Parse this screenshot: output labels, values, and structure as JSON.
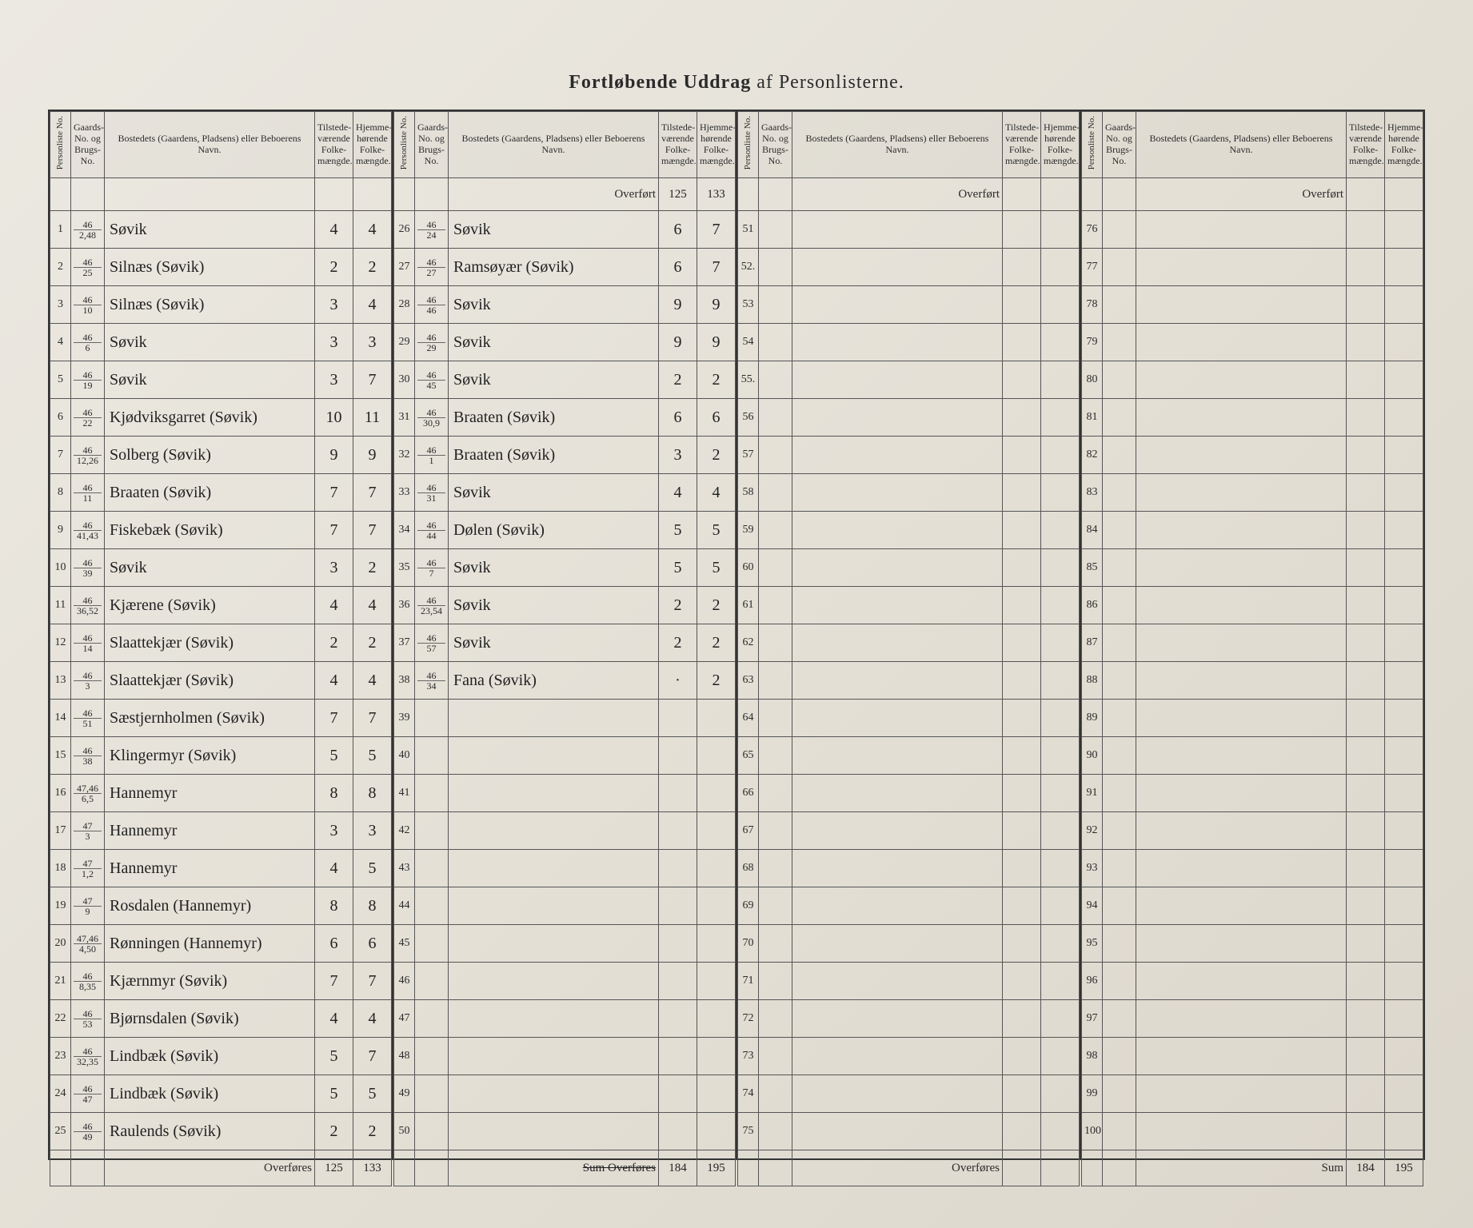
{
  "title_strong": "Fortløbende Uddrag",
  "title_light": "af Personlisterne.",
  "headers": {
    "personliste": "Personliste No.",
    "gaards": "Gaards-\nNo.\nog\nBrugs-\nNo.",
    "bosted": "Bostedets (Gaardens, Pladsens) eller Beboerens Navn.",
    "tilstede": "Tilstede-\nværende\nFolke-\nmængde.",
    "hjemme": "Hjemme-\nhørende\nFolke-\nmængde."
  },
  "labels": {
    "overfort": "Overført",
    "overfores": "Overføres",
    "sum": "Sum",
    "sum_overfores": "Sum Overføres"
  },
  "block1": {
    "rows": [
      {
        "no": "1",
        "g1": "46",
        "g2": "2,48",
        "name": "Søvik",
        "t": "4",
        "h": "4"
      },
      {
        "no": "2",
        "g1": "46",
        "g2": "25",
        "name": "Silnæs   (Søvik)",
        "t": "2",
        "h": "2"
      },
      {
        "no": "3",
        "g1": "46",
        "g2": "10",
        "name": "Silnæs   (Søvik)",
        "t": "3",
        "h": "4"
      },
      {
        "no": "4",
        "g1": "46",
        "g2": "6",
        "name": "Søvik",
        "t": "3",
        "h": "3"
      },
      {
        "no": "5",
        "g1": "46",
        "g2": "19",
        "name": "Søvik",
        "t": "3",
        "h": "7"
      },
      {
        "no": "6",
        "g1": "46",
        "g2": "22",
        "name": "Kjødviksgarret (Søvik)",
        "t": "10",
        "h": "11"
      },
      {
        "no": "7",
        "g1": "46",
        "g2": "12,26",
        "name": "Solberg   (Søvik)",
        "t": "9",
        "h": "9"
      },
      {
        "no": "8",
        "g1": "46",
        "g2": "11",
        "name": "Braaten   (Søvik)",
        "t": "7",
        "h": "7"
      },
      {
        "no": "9",
        "g1": "46",
        "g2": "41,43",
        "name": "Fiskebæk   (Søvik)",
        "t": "7",
        "h": "7"
      },
      {
        "no": "10",
        "g1": "46",
        "g2": "39",
        "name": "Søvik",
        "t": "3",
        "h": "2"
      },
      {
        "no": "11",
        "g1": "46",
        "g2": "36,52",
        "name": "Kjærene   (Søvik)",
        "t": "4",
        "h": "4"
      },
      {
        "no": "12",
        "g1": "46",
        "g2": "14",
        "name": "Slaattekjær  (Søvik)",
        "t": "2",
        "h": "2"
      },
      {
        "no": "13",
        "g1": "46",
        "g2": "3",
        "name": "Slaattekjær  (Søvik)",
        "t": "4",
        "h": "4"
      },
      {
        "no": "14",
        "g1": "46",
        "g2": "51",
        "name": "Sæstjernholmen (Søvik)",
        "t": "7",
        "h": "7"
      },
      {
        "no": "15",
        "g1": "46",
        "g2": "38",
        "name": "Klingermyr  (Søvik)",
        "t": "5",
        "h": "5"
      },
      {
        "no": "16",
        "g1": "47,46",
        "g2": "6,5",
        "name": "Hannemyr",
        "t": "8",
        "h": "8"
      },
      {
        "no": "17",
        "g1": "47",
        "g2": "3",
        "name": "Hannemyr",
        "t": "3",
        "h": "3"
      },
      {
        "no": "18",
        "g1": "47",
        "g2": "1,2",
        "name": "Hannemyr",
        "t": "4",
        "h": "5"
      },
      {
        "no": "19",
        "g1": "47",
        "g2": "9",
        "name": "Rosdalen  (Hannemyr)",
        "t": "8",
        "h": "8"
      },
      {
        "no": "20",
        "g1": "47,46",
        "g2": "4,50",
        "name": "Rønningen (Hannemyr)",
        "t": "6",
        "h": "6"
      },
      {
        "no": "21",
        "g1": "46",
        "g2": "8,35",
        "name": "Kjærnmyr  (Søvik)",
        "t": "7",
        "h": "7"
      },
      {
        "no": "22",
        "g1": "46",
        "g2": "53",
        "name": "Bjørnsdalen  (Søvik)",
        "t": "4",
        "h": "4"
      },
      {
        "no": "23",
        "g1": "46",
        "g2": "32,35",
        "name": "Lindbæk   (Søvik)",
        "t": "5",
        "h": "7"
      },
      {
        "no": "24",
        "g1": "46",
        "g2": "47",
        "name": "Lindbæk   (Søvik)",
        "t": "5",
        "h": "5"
      },
      {
        "no": "25",
        "g1": "46",
        "g2": "49",
        "name": "Raulends   (Søvik)",
        "t": "2",
        "h": "2"
      }
    ],
    "overfores_t": "125",
    "overfores_h": "133"
  },
  "block2": {
    "overfort_t": "125",
    "overfort_h": "133",
    "rows": [
      {
        "no": "26",
        "g1": "46",
        "g2": "24",
        "name": "Søvik",
        "t": "6",
        "h": "7"
      },
      {
        "no": "27",
        "g1": "46",
        "g2": "27",
        "name": "Ramsøyær  (Søvik)",
        "t": "6",
        "h": "7"
      },
      {
        "no": "28",
        "g1": "46",
        "g2": "46",
        "name": "Søvik",
        "t": "9",
        "h": "9"
      },
      {
        "no": "29",
        "g1": "46",
        "g2": "29",
        "name": "Søvik",
        "t": "9",
        "h": "9"
      },
      {
        "no": "30",
        "g1": "46",
        "g2": "45",
        "name": "Søvik",
        "t": "2",
        "h": "2"
      },
      {
        "no": "31",
        "g1": "46",
        "g2": "30,9",
        "name": "Braaten   (Søvik)",
        "t": "6",
        "h": "6"
      },
      {
        "no": "32",
        "g1": "46",
        "g2": "1",
        "name": "Braaten   (Søvik)",
        "t": "3",
        "h": "2"
      },
      {
        "no": "33",
        "g1": "46",
        "g2": "31",
        "name": "Søvik",
        "t": "4",
        "h": "4"
      },
      {
        "no": "34",
        "g1": "46",
        "g2": "44",
        "name": "Dølen   (Søvik)",
        "t": "5",
        "h": "5"
      },
      {
        "no": "35",
        "g1": "46",
        "g2": "7",
        "name": "Søvik",
        "t": "5",
        "h": "5"
      },
      {
        "no": "36",
        "g1": "46",
        "g2": "23,54",
        "name": "Søvik",
        "t": "2",
        "h": "2"
      },
      {
        "no": "37",
        "g1": "46",
        "g2": "57",
        "name": "Søvik",
        "t": "2",
        "h": "2"
      },
      {
        "no": "38",
        "g1": "46",
        "g2": "34",
        "name": "Fana   (Søvik)",
        "t": "·",
        "h": "2"
      },
      {
        "no": "39",
        "g1": "",
        "g2": "",
        "name": "",
        "t": "",
        "h": ""
      },
      {
        "no": "40",
        "g1": "",
        "g2": "",
        "name": "",
        "t": "",
        "h": ""
      },
      {
        "no": "41",
        "g1": "",
        "g2": "",
        "name": "",
        "t": "",
        "h": ""
      },
      {
        "no": "42",
        "g1": "",
        "g2": "",
        "name": "",
        "t": "",
        "h": ""
      },
      {
        "no": "43",
        "g1": "",
        "g2": "",
        "name": "",
        "t": "",
        "h": ""
      },
      {
        "no": "44",
        "g1": "",
        "g2": "",
        "name": "",
        "t": "",
        "h": ""
      },
      {
        "no": "45",
        "g1": "",
        "g2": "",
        "name": "",
        "t": "",
        "h": ""
      },
      {
        "no": "46",
        "g1": "",
        "g2": "",
        "name": "",
        "t": "",
        "h": ""
      },
      {
        "no": "47",
        "g1": "",
        "g2": "",
        "name": "",
        "t": "",
        "h": ""
      },
      {
        "no": "48",
        "g1": "",
        "g2": "",
        "name": "",
        "t": "",
        "h": ""
      },
      {
        "no": "49",
        "g1": "",
        "g2": "",
        "name": "",
        "t": "",
        "h": ""
      },
      {
        "no": "50",
        "g1": "",
        "g2": "",
        "name": "",
        "t": "",
        "h": ""
      }
    ],
    "sum_t": "184",
    "sum_h": "195"
  },
  "block3": {
    "rows": [
      {
        "no": "51"
      },
      {
        "no": "52."
      },
      {
        "no": "53"
      },
      {
        "no": "54"
      },
      {
        "no": "55."
      },
      {
        "no": "56"
      },
      {
        "no": "57"
      },
      {
        "no": "58"
      },
      {
        "no": "59"
      },
      {
        "no": "60"
      },
      {
        "no": "61"
      },
      {
        "no": "62"
      },
      {
        "no": "63"
      },
      {
        "no": "64"
      },
      {
        "no": "65"
      },
      {
        "no": "66"
      },
      {
        "no": "67"
      },
      {
        "no": "68"
      },
      {
        "no": "69"
      },
      {
        "no": "70"
      },
      {
        "no": "71"
      },
      {
        "no": "72"
      },
      {
        "no": "73"
      },
      {
        "no": "74"
      },
      {
        "no": "75"
      }
    ]
  },
  "block4": {
    "rows": [
      {
        "no": "76"
      },
      {
        "no": "77"
      },
      {
        "no": "78"
      },
      {
        "no": "79"
      },
      {
        "no": "80"
      },
      {
        "no": "81"
      },
      {
        "no": "82"
      },
      {
        "no": "83"
      },
      {
        "no": "84"
      },
      {
        "no": "85"
      },
      {
        "no": "86"
      },
      {
        "no": "87"
      },
      {
        "no": "88"
      },
      {
        "no": "89"
      },
      {
        "no": "90"
      },
      {
        "no": "91"
      },
      {
        "no": "92"
      },
      {
        "no": "93"
      },
      {
        "no": "94"
      },
      {
        "no": "95"
      },
      {
        "no": "96"
      },
      {
        "no": "97"
      },
      {
        "no": "98"
      },
      {
        "no": "99"
      },
      {
        "no": "100"
      }
    ],
    "sum_t": "184",
    "sum_h": "195"
  }
}
